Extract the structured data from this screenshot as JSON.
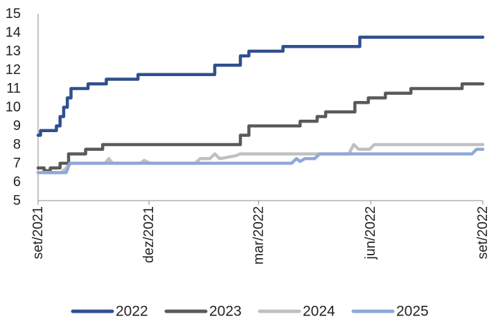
{
  "chart_data": {
    "type": "line",
    "title": "",
    "xlabel": "",
    "ylabel": "",
    "ylim": [
      5,
      15
    ],
    "yticks": [
      "5",
      "6",
      "7",
      "8",
      "9",
      "10",
      "11",
      "12",
      "13",
      "14",
      "15"
    ],
    "xlim": [
      "2021-09-01",
      "2022-09-01"
    ],
    "xticks": [
      {
        "date": "2021-09-01",
        "label": "set/2021"
      },
      {
        "date": "2021-12-01",
        "label": "dez/2021"
      },
      {
        "date": "2022-03-01",
        "label": "mar/2022"
      },
      {
        "date": "2022-06-01",
        "label": "jun/2022"
      },
      {
        "date": "2022-09-01",
        "label": "set/2022"
      }
    ],
    "grid": false,
    "legend_position": "bottom",
    "series": [
      {
        "name": "2022",
        "color": "#2f4f8f",
        "step": true,
        "points": [
          [
            "2021-09-01",
            8.5
          ],
          [
            "2021-09-03",
            8.75
          ],
          [
            "2021-09-15",
            8.75
          ],
          [
            "2021-09-16",
            9.0
          ],
          [
            "2021-09-19",
            9.5
          ],
          [
            "2021-09-22",
            10.0
          ],
          [
            "2021-09-25",
            10.5
          ],
          [
            "2021-09-28",
            11.0
          ],
          [
            "2021-10-12",
            11.25
          ],
          [
            "2021-10-27",
            11.5
          ],
          [
            "2021-11-22",
            11.75
          ],
          [
            "2022-01-24",
            12.25
          ],
          [
            "2022-02-14",
            12.75
          ],
          [
            "2022-02-21",
            13.0
          ],
          [
            "2022-03-21",
            13.25
          ],
          [
            "2022-05-23",
            13.75
          ],
          [
            "2022-09-01",
            13.75
          ]
        ]
      },
      {
        "name": "2023",
        "color": "#5a5a5a",
        "step": true,
        "points": [
          [
            "2021-09-01",
            6.75
          ],
          [
            "2021-09-06",
            6.6
          ],
          [
            "2021-09-11",
            6.75
          ],
          [
            "2021-09-19",
            7.0
          ],
          [
            "2021-09-26",
            7.5
          ],
          [
            "2021-10-10",
            7.75
          ],
          [
            "2021-10-24",
            8.0
          ],
          [
            "2022-02-14",
            8.5
          ],
          [
            "2022-02-21",
            9.0
          ],
          [
            "2022-04-04",
            9.25
          ],
          [
            "2022-04-18",
            9.5
          ],
          [
            "2022-04-25",
            9.75
          ],
          [
            "2022-05-19",
            10.25
          ],
          [
            "2022-05-30",
            10.5
          ],
          [
            "2022-06-13",
            10.75
          ],
          [
            "2022-07-04",
            11.0
          ],
          [
            "2022-08-15",
            11.25
          ],
          [
            "2022-09-01",
            11.25
          ]
        ]
      },
      {
        "name": "2024",
        "color": "#c0c0c0",
        "step": false,
        "points": [
          [
            "2021-09-01",
            6.5
          ],
          [
            "2021-09-20",
            6.5
          ],
          [
            "2021-09-24",
            6.75
          ],
          [
            "2021-09-28",
            7.0
          ],
          [
            "2021-10-26",
            7.0
          ],
          [
            "2021-10-29",
            7.25
          ],
          [
            "2021-11-01",
            7.0
          ],
          [
            "2021-11-24",
            7.0
          ],
          [
            "2021-11-27",
            7.15
          ],
          [
            "2021-12-02",
            7.0
          ],
          [
            "2022-01-08",
            7.0
          ],
          [
            "2022-01-12",
            7.25
          ],
          [
            "2022-01-20",
            7.25
          ],
          [
            "2022-01-24",
            7.5
          ],
          [
            "2022-01-28",
            7.25
          ],
          [
            "2022-02-10",
            7.4
          ],
          [
            "2022-02-14",
            7.5
          ],
          [
            "2022-05-14",
            7.5
          ],
          [
            "2022-05-18",
            8.0
          ],
          [
            "2022-05-22",
            7.75
          ],
          [
            "2022-05-31",
            7.75
          ],
          [
            "2022-06-04",
            8.0
          ],
          [
            "2022-09-01",
            8.0
          ]
        ]
      },
      {
        "name": "2025",
        "color": "#8fa8da",
        "step": false,
        "points": [
          [
            "2021-09-01",
            6.5
          ],
          [
            "2021-09-24",
            6.5
          ],
          [
            "2021-09-27",
            7.0
          ],
          [
            "2022-03-28",
            7.0
          ],
          [
            "2022-04-01",
            7.25
          ],
          [
            "2022-04-04",
            7.1
          ],
          [
            "2022-04-08",
            7.25
          ],
          [
            "2022-04-16",
            7.25
          ],
          [
            "2022-04-20",
            7.5
          ],
          [
            "2022-04-27",
            7.5
          ],
          [
            "2022-08-23",
            7.5
          ],
          [
            "2022-08-27",
            7.75
          ],
          [
            "2022-09-01",
            7.75
          ]
        ]
      }
    ]
  }
}
